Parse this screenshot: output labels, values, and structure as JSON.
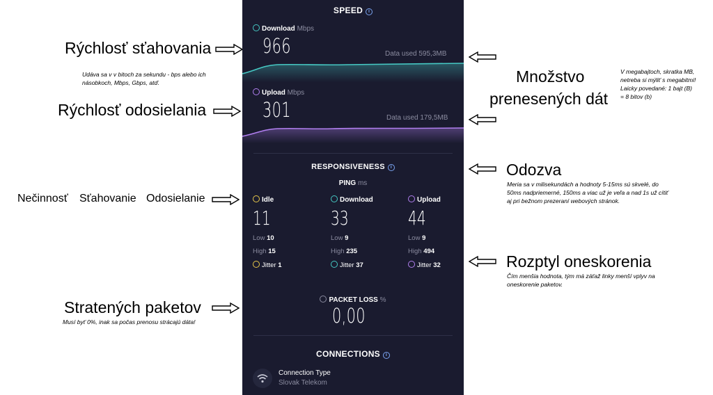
{
  "speed": {
    "title": "SPEED",
    "download": {
      "label": "Download",
      "unit": "Mbps",
      "value": "966",
      "data_used": "Data used 595,3MB"
    },
    "upload": {
      "label": "Upload",
      "unit": "Mbps",
      "value": "301",
      "data_used": "Data used 179,5MB"
    }
  },
  "responsiveness": {
    "title": "RESPONSIVENESS",
    "ping_label": "PING",
    "ping_unit": "ms",
    "idle": {
      "label": "Idle",
      "value": "11",
      "low_label": "Low",
      "low": "10",
      "high_label": "High",
      "high": "15",
      "jitter_label": "Jitter",
      "jitter": "1"
    },
    "download": {
      "label": "Download",
      "value": "33",
      "low_label": "Low",
      "low": "9",
      "high_label": "High",
      "high": "235",
      "jitter_label": "Jitter",
      "jitter": "37"
    },
    "upload": {
      "label": "Upload",
      "value": "44",
      "low_label": "Low",
      "low": "9",
      "high_label": "High",
      "high": "494",
      "jitter_label": "Jitter",
      "jitter": "32"
    }
  },
  "packet_loss": {
    "label": "PACKET LOSS",
    "unit": "%",
    "value": "0,00"
  },
  "connections": {
    "title": "CONNECTIONS",
    "type_label": "Connection Type",
    "type_value": "Slovak Telekom"
  },
  "annotations": {
    "download_speed": "Rýchlosť sťahovania",
    "download_note": "Udáva sa v v bitoch za sekundu - bps alebo ich násobkoch, Mbps, Gbps, atď.",
    "upload_speed": "Rýchlosť odosielania",
    "states": {
      "idle": "Nečinnosť",
      "download": "Sťahovanie",
      "upload": "Odosielanie"
    },
    "packets_lost": "Stratených paketov",
    "packets_note": "Musí byť 0%, inak sa počas prenosu strácajú dáta!",
    "data_amount_line1": "Množstvo",
    "data_amount_line2": "prenesených dát",
    "data_amount_note": "V megabajtoch, skratka MB, netreba si mýliť s megabitmi! Laicky povedané: 1 bajt (B) = 8 bitov (b)",
    "latency": "Odozva",
    "latency_note": "Meria sa v milisekundách a hodnoty 5-15ms sú skvelé, do 50ms nadpriemerné, 150ms a viac už je veľa a nad 1s už cítiť aj pri bežnom prezeraní webových stránok.",
    "jitter": "Rozptyl oneskorenia",
    "jitter_note": "Čím menšia hodnota, tým má záťaž linky menší vplyv na oneskorenie paketov."
  },
  "colors": {
    "panel_bg": "#1a1b2f",
    "download": "#46c9c4",
    "upload": "#b17ff0",
    "idle": "#e8c84a"
  }
}
